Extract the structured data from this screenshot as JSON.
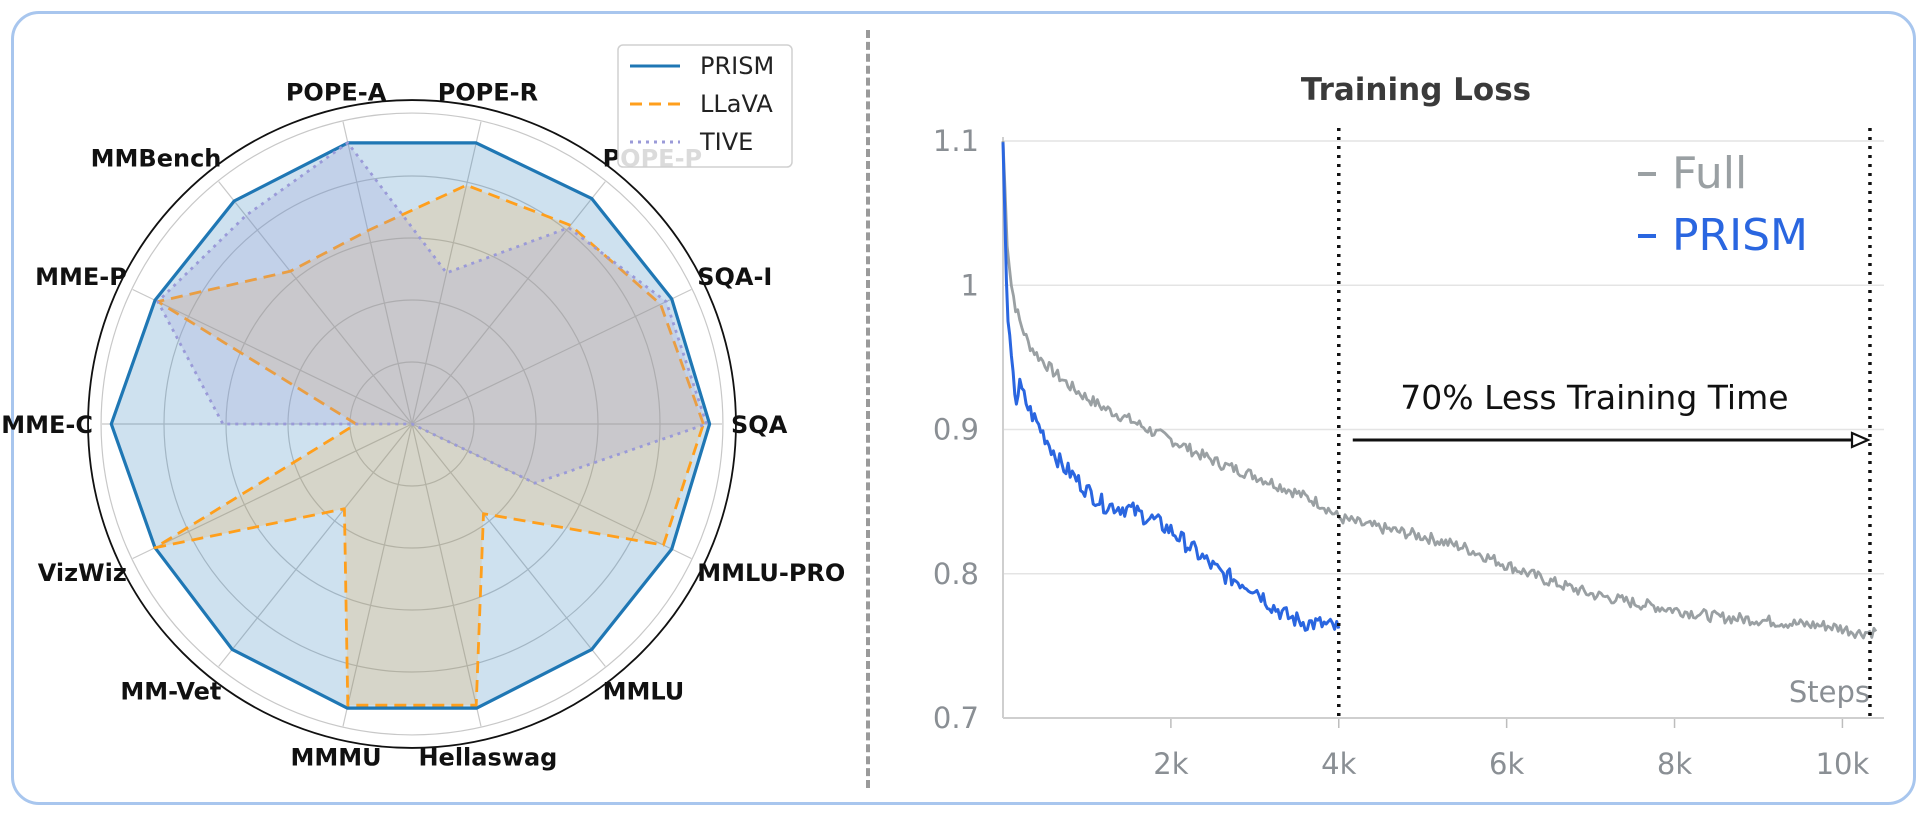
{
  "chart_data": [
    {
      "type": "radar",
      "axes": [
        "SQA",
        "SQA-I",
        "POPE-P",
        "POPE-R",
        "POPE-A",
        "MMBench",
        "MME-P",
        "MME-C",
        "VizWiz",
        "MM-Vet",
        "MMMU",
        "Hellaswag",
        "MMLU",
        "MMLU-PRO"
      ],
      "rlim": [
        0,
        1.0
      ],
      "grid": true,
      "legend": "top-right",
      "series": [
        {
          "name": "PRISM",
          "color": "#1f77b4",
          "line": "solid",
          "values": [
            0.96,
            0.93,
            0.93,
            0.93,
            0.93,
            0.92,
            0.92,
            0.97,
            0.92,
            0.93,
            0.94,
            0.94,
            0.93,
            0.93
          ]
        },
        {
          "name": "LLaVA",
          "color": "#ff9f1c",
          "line": "dashed",
          "values": [
            0.94,
            0.89,
            0.82,
            0.79,
            0.64,
            0.63,
            0.91,
            0.18,
            0.92,
            0.35,
            0.93,
            0.93,
            0.37,
            0.9
          ]
        },
        {
          "name": "TIVE",
          "color": "#9a9ad8",
          "line": "dotted",
          "values": [
            0.95,
            0.91,
            0.81,
            0.5,
            0.93,
            0.86,
            0.91,
            0.61,
            0.0,
            0.0,
            0.0,
            0.0,
            0.0,
            0.44
          ]
        }
      ]
    },
    {
      "type": "line",
      "title": "Training Loss",
      "xlabel": "Steps",
      "xlim": [
        0,
        10400
      ],
      "ylim": [
        0.7,
        1.1
      ],
      "yticks": [
        0.7,
        0.8,
        0.9,
        1.0,
        1.1
      ],
      "ytick_labels": [
        "0.7",
        "0.8",
        "0.9",
        "1",
        "1.1"
      ],
      "xticks": [
        2000,
        4000,
        6000,
        8000,
        10000
      ],
      "xtick_labels": [
        "2k",
        "4k",
        "6k",
        "8k",
        "10k"
      ],
      "grid": true,
      "legend": "top-right",
      "annotation": "70% Less Training Time",
      "vlines": [
        4000,
        10000
      ],
      "series": [
        {
          "name": "Full",
          "color": "#9aa0a3",
          "x": [
            0,
            50,
            100,
            150,
            200,
            300,
            400,
            600,
            800,
            1000,
            1200,
            1500,
            1800,
            2000,
            2300,
            2600,
            3000,
            3500,
            3800,
            4000,
            4300,
            5000,
            5500,
            6000,
            6500,
            7000,
            7500,
            8000,
            8500,
            9000,
            9500,
            9800,
            10000,
            10200,
            10400
          ],
          "y": [
            1.1,
            1.03,
            1.0,
            0.985,
            0.975,
            0.96,
            0.952,
            0.94,
            0.93,
            0.922,
            0.915,
            0.907,
            0.898,
            0.893,
            0.884,
            0.876,
            0.868,
            0.856,
            0.848,
            0.839,
            0.834,
            0.826,
            0.818,
            0.806,
            0.795,
            0.786,
            0.78,
            0.775,
            0.77,
            0.768,
            0.765,
            0.764,
            0.762,
            0.759,
            0.76
          ]
        },
        {
          "name": "PRISM",
          "color": "#2a66e0",
          "x": [
            0,
            40,
            80,
            120,
            160,
            200,
            300,
            400,
            500,
            600,
            700,
            800,
            1000,
            1200,
            1500,
            1800,
            2000,
            2200,
            2400,
            2600,
            2800,
            3000,
            3200,
            3400,
            3600,
            3800,
            4000
          ],
          "y": [
            1.1,
            1.0,
            0.96,
            0.935,
            0.92,
            0.93,
            0.915,
            0.905,
            0.895,
            0.885,
            0.875,
            0.87,
            0.858,
            0.848,
            0.845,
            0.837,
            0.83,
            0.82,
            0.81,
            0.8,
            0.795,
            0.79,
            0.778,
            0.77,
            0.766,
            0.765,
            0.762
          ]
        }
      ]
    }
  ]
}
